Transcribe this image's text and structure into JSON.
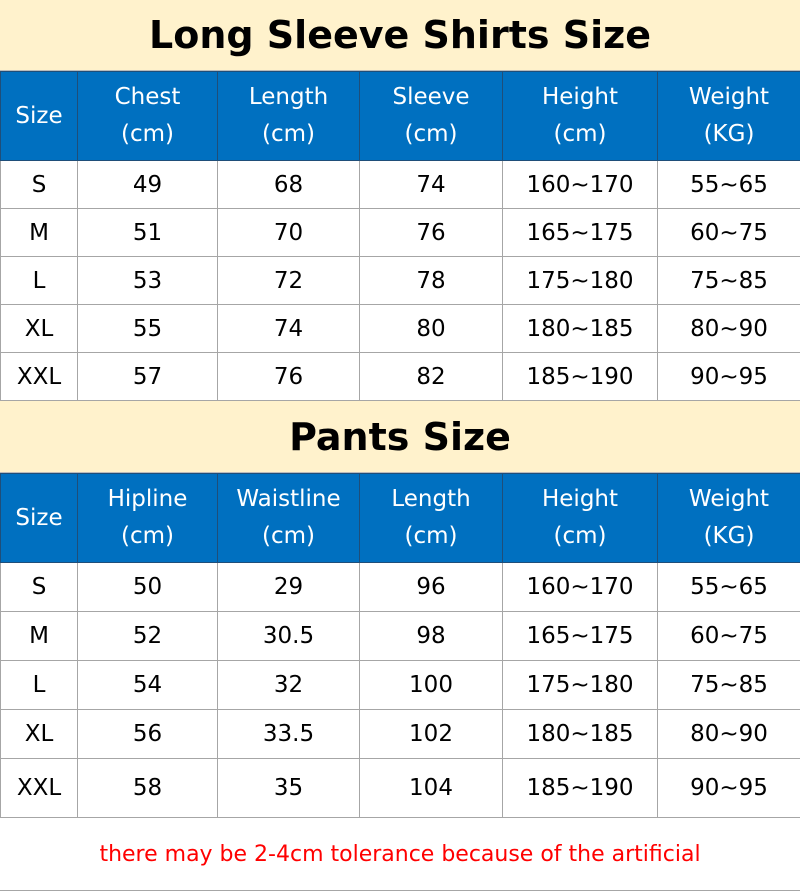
{
  "shirts": {
    "title": "Long Sleeve Shirts Size",
    "headers": [
      [
        "Size",
        ""
      ],
      [
        "Chest",
        "(cm)"
      ],
      [
        "Length",
        "(cm)"
      ],
      [
        "Sleeve",
        "(cm)"
      ],
      [
        "Height",
        "(cm)"
      ],
      [
        "Weight",
        "(KG)"
      ]
    ],
    "rows": [
      [
        "S",
        "49",
        "68",
        "74",
        "160~170",
        "55~65"
      ],
      [
        "M",
        "51",
        "70",
        "76",
        "165~175",
        "60~75"
      ],
      [
        "L",
        "53",
        "72",
        "78",
        "175~180",
        "75~85"
      ],
      [
        "XL",
        "55",
        "74",
        "80",
        "180~185",
        "80~90"
      ],
      [
        "XXL",
        "57",
        "76",
        "82",
        "185~190",
        "90~95"
      ]
    ]
  },
  "pants": {
    "title": "Pants Size",
    "headers": [
      [
        "Size",
        ""
      ],
      [
        "Hipline",
        "(cm)"
      ],
      [
        "Waistline",
        "(cm)"
      ],
      [
        "Length",
        "(cm)"
      ],
      [
        "Height",
        "(cm)"
      ],
      [
        "Weight",
        "(KG)"
      ]
    ],
    "rows": [
      [
        "S",
        "50",
        "29",
        "96",
        "160~170",
        "55~65"
      ],
      [
        "M",
        "52",
        "30.5",
        "98",
        "165~175",
        "60~75"
      ],
      [
        "L",
        "54",
        "32",
        "100",
        "175~180",
        "75~85"
      ],
      [
        "XL",
        "56",
        "33.5",
        "102",
        "180~185",
        "80~90"
      ],
      [
        "XXL",
        "58",
        "35",
        "104",
        "185~190",
        "90~95"
      ]
    ]
  },
  "note": "there may be 2-4cm tolerance because of the artificial",
  "colors": {
    "title_bg": "#fff2cc",
    "header_bg": "#0070c0",
    "note": "#ff0000"
  }
}
